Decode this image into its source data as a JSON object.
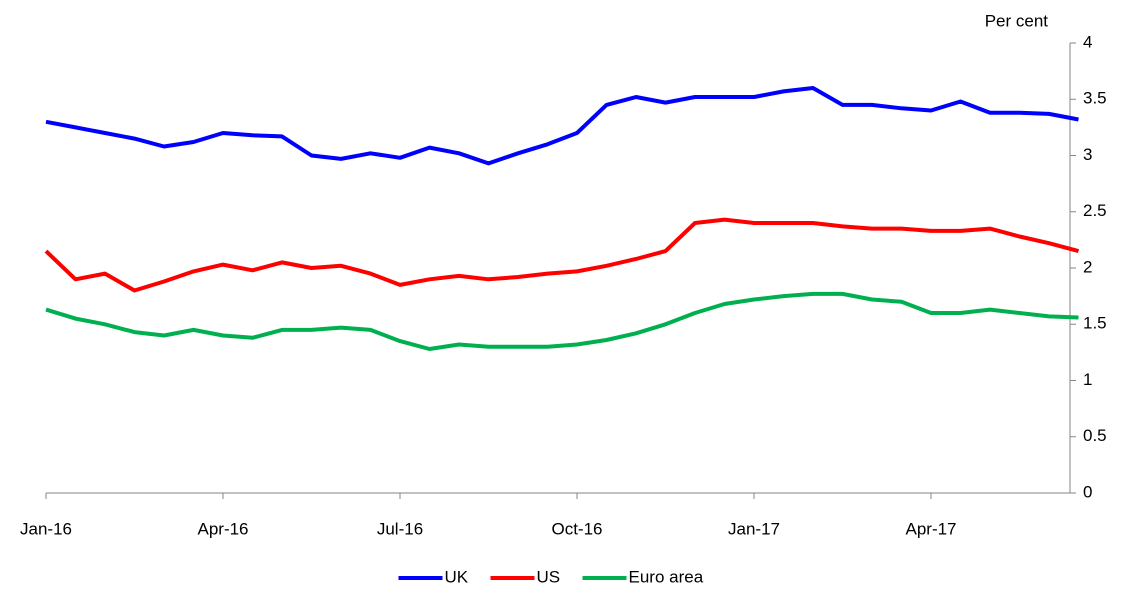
{
  "chart_data": {
    "type": "line",
    "y_axis_label": "Per cent",
    "categories": [
      "Jan-16",
      null,
      null,
      null,
      null,
      null,
      "Apr-16",
      null,
      null,
      null,
      null,
      null,
      "Jul-16",
      null,
      null,
      null,
      null,
      null,
      "Oct-16",
      null,
      null,
      null,
      null,
      null,
      "Jan-17",
      null,
      null,
      null,
      null,
      null,
      "Apr-17",
      null,
      null,
      null,
      null,
      null
    ],
    "series": [
      {
        "name": "UK",
        "color": "#0000ff",
        "values": [
          3.3,
          3.25,
          3.2,
          3.15,
          3.08,
          3.12,
          3.2,
          3.18,
          3.17,
          3.0,
          2.97,
          3.02,
          2.98,
          3.07,
          3.02,
          2.93,
          3.02,
          3.1,
          3.2,
          3.45,
          3.52,
          3.47,
          3.52,
          3.52,
          3.52,
          3.57,
          3.6,
          3.45,
          3.45,
          3.42,
          3.4,
          3.48,
          3.38,
          3.38,
          3.37,
          3.32
        ]
      },
      {
        "name": "US",
        "color": "#ff0000",
        "values": [
          2.15,
          1.9,
          1.95,
          1.8,
          1.88,
          1.97,
          2.03,
          1.98,
          2.05,
          2.0,
          2.02,
          1.95,
          1.85,
          1.9,
          1.93,
          1.9,
          1.92,
          1.95,
          1.97,
          2.02,
          2.08,
          2.15,
          2.4,
          2.43,
          2.4,
          2.4,
          2.4,
          2.37,
          2.35,
          2.35,
          2.33,
          2.33,
          2.35,
          2.28,
          2.22,
          2.15
        ]
      },
      {
        "name": "Euro area",
        "color": "#00b050",
        "values": [
          1.63,
          1.55,
          1.5,
          1.43,
          1.4,
          1.45,
          1.4,
          1.38,
          1.45,
          1.45,
          1.47,
          1.45,
          1.35,
          1.28,
          1.32,
          1.3,
          1.3,
          1.3,
          1.32,
          1.36,
          1.42,
          1.5,
          1.6,
          1.68,
          1.72,
          1.75,
          1.77,
          1.77,
          1.72,
          1.7,
          1.6,
          1.6,
          1.63,
          1.6,
          1.57,
          1.56
        ]
      }
    ],
    "ylim": [
      0,
      4
    ],
    "yticks": [
      0,
      0.5,
      1,
      1.5,
      2,
      2.5,
      3,
      3.5,
      4
    ],
    "y_axis_side": "right",
    "grid": false,
    "legend": "bottom"
  }
}
